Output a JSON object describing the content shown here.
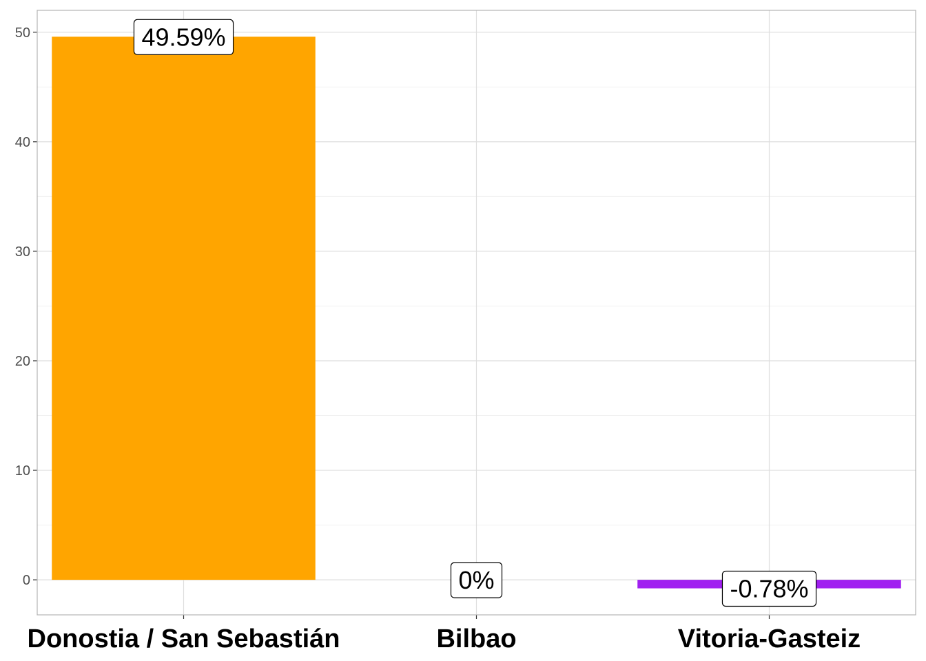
{
  "chart_data": {
    "type": "bar",
    "categories": [
      "Donostia / San Sebastián",
      "Bilbao",
      "Vitoria-Gasteiz"
    ],
    "values": [
      49.59,
      0,
      -0.78
    ],
    "data_labels": [
      "49.59%",
      "0%",
      "-0.78%"
    ],
    "bar_colors": [
      "#FFA500",
      "#FFA500",
      "#A020F0"
    ],
    "title": "",
    "xlabel": "",
    "ylabel": "",
    "ylim": [
      -3.2,
      52
    ],
    "yticks": [
      0,
      10,
      20,
      30,
      40,
      50
    ],
    "ytick_labels": [
      "0",
      "10",
      "20",
      "30",
      "40",
      "50"
    ],
    "grid": true,
    "legend": "none"
  }
}
